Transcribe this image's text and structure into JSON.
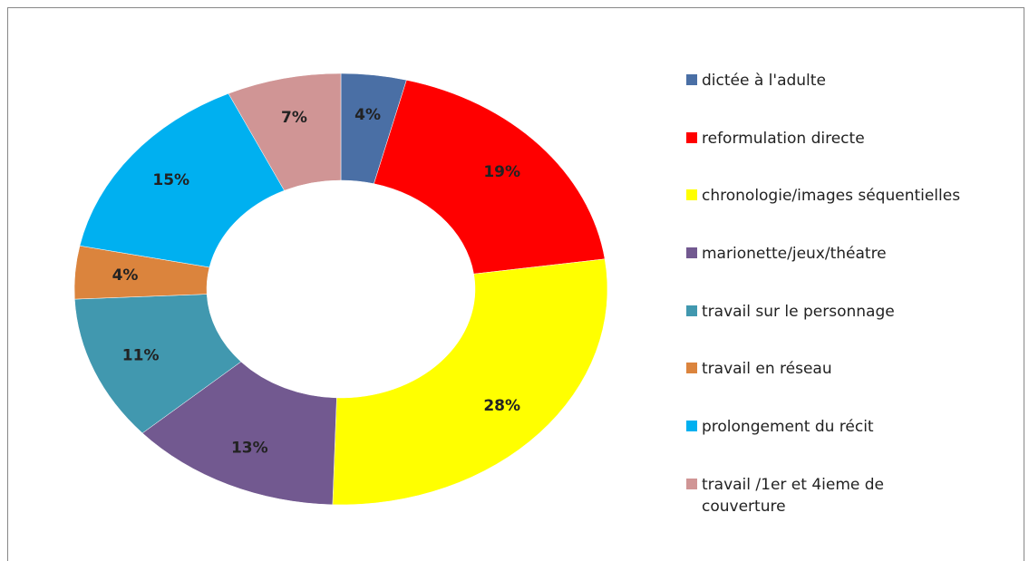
{
  "chart_data": {
    "type": "donut",
    "categories": [
      "dictée à l'adulte",
      "reformulation directe",
      "chronologie/images séquentielles",
      "marionette/jeux/théatre",
      "travail sur le personnage",
      "travail en réseau",
      "prolongement du récit",
      "travail /1er et 4ieme de couverture"
    ],
    "values": [
      4,
      19,
      28,
      13,
      11,
      4,
      15,
      7
    ],
    "value_labels": [
      "4%",
      "19%",
      "28%",
      "13%",
      "11%",
      "4%",
      "15%",
      "7%"
    ],
    "colors": [
      "#4a6fa5",
      "#ff0000",
      "#ffff00",
      "#725990",
      "#4198af",
      "#db843d",
      "#00b0f0",
      "#d09595"
    ],
    "legend": "right"
  }
}
